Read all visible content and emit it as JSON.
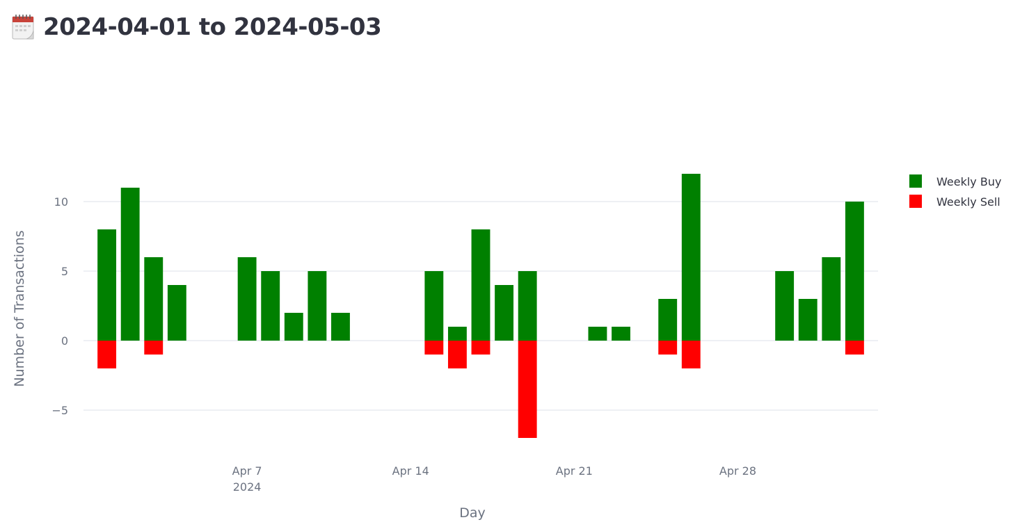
{
  "header": {
    "title": "2024-04-01 to 2024-05-03",
    "icon": "calendar-icon"
  },
  "chart_data": {
    "type": "bar",
    "barmode": "relative",
    "title": "",
    "xlabel": "Day",
    "ylabel": "Number of Transactions",
    "x_range": [
      "2024-03-31",
      "2024-05-04"
    ],
    "ylim": [
      -8,
      13
    ],
    "y_ticks": [
      -5,
      0,
      5,
      10
    ],
    "y_tick_labels": [
      "−5",
      "0",
      "5",
      "10"
    ],
    "x_ticks": [
      {
        "date": "2024-04-07",
        "label": "Apr 7",
        "sublabel": "2024"
      },
      {
        "date": "2024-04-14",
        "label": "Apr 14",
        "sublabel": ""
      },
      {
        "date": "2024-04-21",
        "label": "Apr 21",
        "sublabel": ""
      },
      {
        "date": "2024-04-28",
        "label": "Apr 28",
        "sublabel": ""
      }
    ],
    "grid": true,
    "legend_position": "top-right",
    "series": [
      {
        "name": "Weekly Buy",
        "color": "#008000",
        "points": [
          {
            "date": "2024-04-01",
            "value": 8
          },
          {
            "date": "2024-04-02",
            "value": 11
          },
          {
            "date": "2024-04-03",
            "value": 6
          },
          {
            "date": "2024-04-04",
            "value": 4
          },
          {
            "date": "2024-04-07",
            "value": 6
          },
          {
            "date": "2024-04-08",
            "value": 5
          },
          {
            "date": "2024-04-09",
            "value": 2
          },
          {
            "date": "2024-04-10",
            "value": 5
          },
          {
            "date": "2024-04-11",
            "value": 2
          },
          {
            "date": "2024-04-15",
            "value": 5
          },
          {
            "date": "2024-04-16",
            "value": 1
          },
          {
            "date": "2024-04-17",
            "value": 8
          },
          {
            "date": "2024-04-18",
            "value": 4
          },
          {
            "date": "2024-04-19",
            "value": 5
          },
          {
            "date": "2024-04-22",
            "value": 1
          },
          {
            "date": "2024-04-23",
            "value": 1
          },
          {
            "date": "2024-04-25",
            "value": 3
          },
          {
            "date": "2024-04-26",
            "value": 12
          },
          {
            "date": "2024-04-30",
            "value": 5
          },
          {
            "date": "2024-05-01",
            "value": 3
          },
          {
            "date": "2024-05-02",
            "value": 6
          },
          {
            "date": "2024-05-03",
            "value": 10
          }
        ]
      },
      {
        "name": "Weekly Sell",
        "color": "#ff0000",
        "points": [
          {
            "date": "2024-04-01",
            "value": -2
          },
          {
            "date": "2024-04-03",
            "value": -1
          },
          {
            "date": "2024-04-15",
            "value": -1
          },
          {
            "date": "2024-04-16",
            "value": -2
          },
          {
            "date": "2024-04-17",
            "value": -1
          },
          {
            "date": "2024-04-19",
            "value": -7
          },
          {
            "date": "2024-04-25",
            "value": -1
          },
          {
            "date": "2024-04-26",
            "value": -2
          },
          {
            "date": "2024-05-03",
            "value": -1
          }
        ]
      }
    ]
  }
}
